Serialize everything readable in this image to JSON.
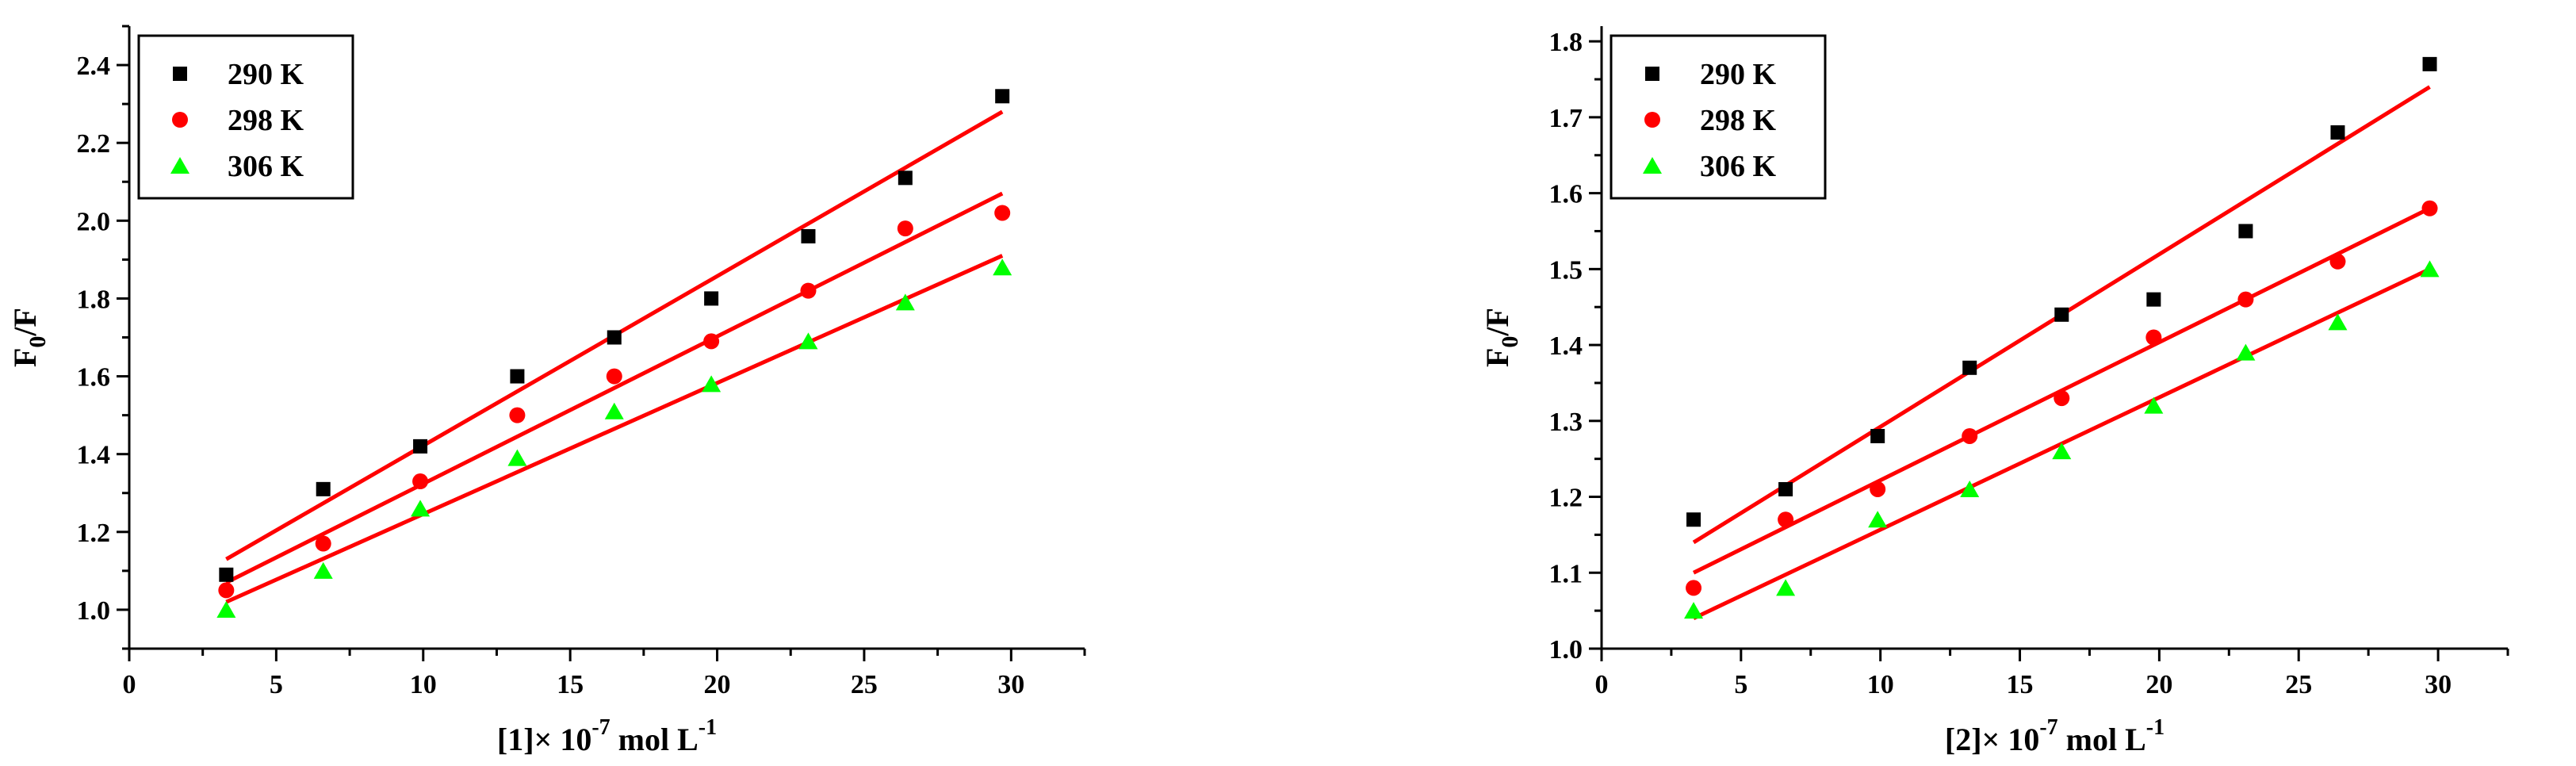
{
  "figure": {
    "colors": {
      "series_290": "#000000",
      "series_298": "#ff0000",
      "series_306": "#00ff00",
      "fit_line": "#ff0000"
    }
  },
  "chart_data": [
    {
      "type": "scatter",
      "title": "",
      "xlabel_parts": {
        "prefix": "[1]×  10",
        "exponent": "-7",
        "unit": " mol L",
        "unit_exp": "-1"
      },
      "ylabel_parts": {
        "main": "F",
        "sub": "0",
        "rest": "/F"
      },
      "xlim": [
        0,
        32.5
      ],
      "ylim": [
        0.9,
        2.5
      ],
      "xticks": [
        0,
        5,
        10,
        15,
        20,
        25,
        30
      ],
      "yticks": [
        1.0,
        1.2,
        1.4,
        1.6,
        1.8,
        2.0,
        2.2,
        2.4
      ],
      "ytick_labels": [
        "1.0",
        "1.2",
        "1.4",
        "1.6",
        "1.8",
        "2.0",
        "2.2",
        "2.4"
      ],
      "legend_position": "top-left",
      "x": [
        3.3,
        6.6,
        9.9,
        13.2,
        16.5,
        19.8,
        23.1,
        26.4,
        29.7
      ],
      "series": [
        {
          "name": "290 K",
          "marker": "square",
          "color": "#000000",
          "values": [
            1.09,
            1.31,
            1.42,
            1.6,
            1.7,
            1.8,
            1.96,
            2.11,
            2.32
          ],
          "fit": {
            "x": [
              3.3,
              29.7
            ],
            "y": [
              1.13,
              2.28
            ]
          }
        },
        {
          "name": "298 K",
          "marker": "circle",
          "color": "#ff0000",
          "values": [
            1.05,
            1.17,
            1.33,
            1.5,
            1.6,
            1.69,
            1.82,
            1.98,
            2.02
          ],
          "fit": {
            "x": [
              3.3,
              29.7
            ],
            "y": [
              1.07,
              2.07
            ]
          }
        },
        {
          "name": "306 K",
          "marker": "triangle",
          "color": "#00ff00",
          "values": [
            1.0,
            1.1,
            1.26,
            1.39,
            1.51,
            1.58,
            1.69,
            1.79,
            1.88
          ],
          "fit": {
            "x": [
              3.3,
              29.7
            ],
            "y": [
              1.02,
              1.91
            ]
          }
        }
      ]
    },
    {
      "type": "scatter",
      "title": "",
      "xlabel_parts": {
        "prefix": "[2]×  10",
        "exponent": "-7",
        "unit": " mol L",
        "unit_exp": "-1"
      },
      "ylabel_parts": {
        "main": "F",
        "sub": "0",
        "rest": "/F"
      },
      "xlim": [
        0,
        32.5
      ],
      "ylim": [
        1.0,
        1.82
      ],
      "xticks": [
        0,
        5,
        10,
        15,
        20,
        25,
        30
      ],
      "yticks": [
        1.0,
        1.1,
        1.2,
        1.3,
        1.4,
        1.5,
        1.6,
        1.7,
        1.8
      ],
      "ytick_labels": [
        "1.0",
        "1.1",
        "1.2",
        "1.3",
        "1.4",
        "1.5",
        "1.6",
        "1.7",
        "1.8"
      ],
      "legend_position": "top-left",
      "x": [
        3.3,
        6.6,
        9.9,
        13.2,
        16.5,
        19.8,
        23.1,
        26.4,
        29.7
      ],
      "series": [
        {
          "name": "290 K",
          "marker": "square",
          "color": "#000000",
          "values": [
            1.17,
            1.21,
            1.28,
            1.37,
            1.44,
            1.46,
            1.55,
            1.68,
            1.77
          ],
          "fit": {
            "x": [
              3.3,
              29.7
            ],
            "y": [
              1.14,
              1.74
            ]
          }
        },
        {
          "name": "298 K",
          "marker": "circle",
          "color": "#ff0000",
          "values": [
            1.08,
            1.17,
            1.21,
            1.28,
            1.33,
            1.41,
            1.46,
            1.51,
            1.58
          ],
          "fit": {
            "x": [
              3.3,
              29.7
            ],
            "y": [
              1.1,
              1.58
            ]
          }
        },
        {
          "name": "306 K",
          "marker": "triangle",
          "color": "#00ff00",
          "values": [
            1.05,
            1.08,
            1.17,
            1.21,
            1.26,
            1.32,
            1.39,
            1.43,
            1.5
          ],
          "fit": {
            "x": [
              3.3,
              29.7
            ],
            "y": [
              1.04,
              1.5
            ]
          }
        }
      ]
    }
  ]
}
